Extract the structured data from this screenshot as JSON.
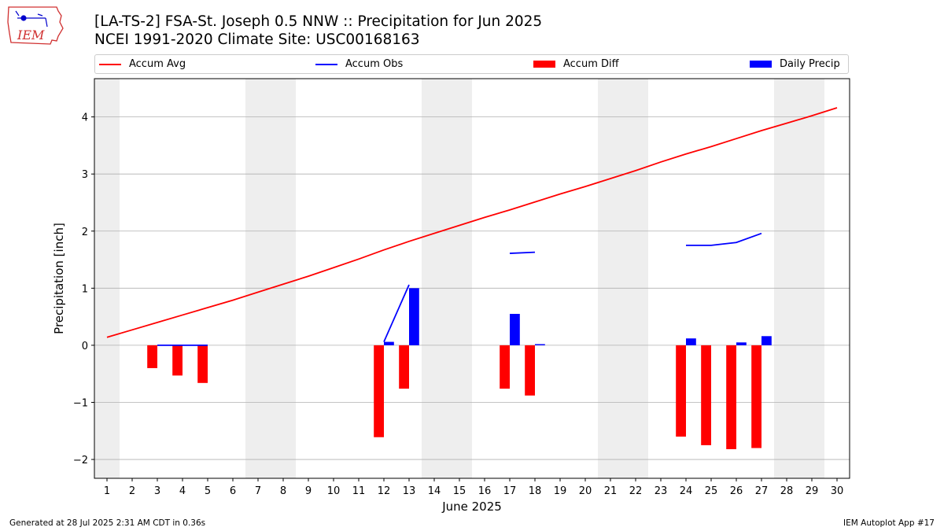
{
  "header": {
    "title_line1": "[LA-TS-2] FSA-St. Joseph 0.5 NNW :: Precipitation for Jun 2025",
    "title_line2": "NCEI 1991-2020 Climate Site: USC00168163"
  },
  "logo": {
    "text": "IEM"
  },
  "footer": {
    "left": "Generated at 28 Jul 2025 2:31 AM CDT in 0.36s",
    "right": "IEM Autoplot App #17"
  },
  "colors": {
    "accum_avg": "#ff0000",
    "accum_obs": "#0000ff",
    "accum_diff": "#ff0000",
    "daily_precip": "#0000ff",
    "weekend_shade": "#eeeeee",
    "grid": "#b0b0b0"
  },
  "chart_data": {
    "type": "bar",
    "title": "[LA-TS-2] FSA-St. Joseph 0.5 NNW :: Precipitation for Jun 2025",
    "subtitle": "NCEI 1991-2020 Climate Site: USC00168163",
    "xlabel": "June 2025",
    "ylabel": "Precipitation [inch]",
    "xlim": [
      0.5,
      30.5
    ],
    "ylim": [
      -2.33,
      4.67
    ],
    "x_ticks": [
      1,
      2,
      3,
      4,
      5,
      6,
      7,
      8,
      9,
      10,
      11,
      12,
      13,
      14,
      15,
      16,
      17,
      18,
      19,
      20,
      21,
      22,
      23,
      24,
      25,
      26,
      27,
      28,
      29,
      30
    ],
    "y_ticks": [
      -2,
      -1,
      0,
      1,
      2,
      3,
      4
    ],
    "y_tick_labels": [
      "−2",
      "−1",
      "0",
      "1",
      "2",
      "3",
      "4"
    ],
    "grid": "horizontal",
    "legend_position": "top",
    "shaded_weekend_days": [
      [
        1,
        1
      ],
      [
        7,
        8
      ],
      [
        14,
        15
      ],
      [
        21,
        22
      ],
      [
        28,
        29
      ]
    ],
    "legend": [
      "Accum Avg",
      "Accum Obs",
      "Accum Diff",
      "Daily Precip"
    ],
    "series": [
      {
        "name": "Accum Avg",
        "kind": "line",
        "x": [
          1,
          2,
          3,
          4,
          5,
          6,
          7,
          8,
          9,
          10,
          11,
          12,
          13,
          14,
          15,
          16,
          17,
          18,
          19,
          20,
          21,
          22,
          23,
          24,
          25,
          26,
          27,
          28,
          29,
          30
        ],
        "values": [
          0.14,
          0.27,
          0.4,
          0.53,
          0.66,
          0.79,
          0.93,
          1.07,
          1.21,
          1.36,
          1.51,
          1.67,
          1.82,
          1.96,
          2.1,
          2.24,
          2.37,
          2.51,
          2.65,
          2.78,
          2.92,
          3.06,
          3.21,
          3.35,
          3.48,
          3.62,
          3.76,
          3.89,
          4.02,
          4.16
        ]
      },
      {
        "name": "Accum Obs",
        "kind": "line",
        "segments": [
          {
            "x": [
              3,
              4,
              5
            ],
            "values": [
              0.0,
              0.0,
              0.0
            ]
          },
          {
            "x": [
              12,
              13
            ],
            "values": [
              0.06,
              1.06
            ]
          },
          {
            "x": [
              17,
              18
            ],
            "values": [
              1.61,
              1.63
            ]
          },
          {
            "x": [
              24,
              25,
              26,
              27
            ],
            "values": [
              1.75,
              1.75,
              1.8,
              1.96
            ]
          }
        ]
      },
      {
        "name": "Accum Diff",
        "kind": "bar",
        "x": [
          3,
          4,
          5,
          12,
          13,
          17,
          18,
          24,
          25,
          26,
          27
        ],
        "values": [
          -0.4,
          -0.53,
          -0.66,
          -1.61,
          -0.76,
          -0.76,
          -0.88,
          -1.6,
          -1.75,
          -1.82,
          -1.8
        ]
      },
      {
        "name": "Daily Precip",
        "kind": "bar",
        "x": [
          3,
          4,
          5,
          12,
          13,
          17,
          18,
          24,
          25,
          26,
          27
        ],
        "values": [
          0.0,
          0.0,
          0.0,
          0.06,
          1.0,
          0.55,
          0.02,
          0.12,
          0.0,
          0.05,
          0.16
        ]
      }
    ]
  }
}
